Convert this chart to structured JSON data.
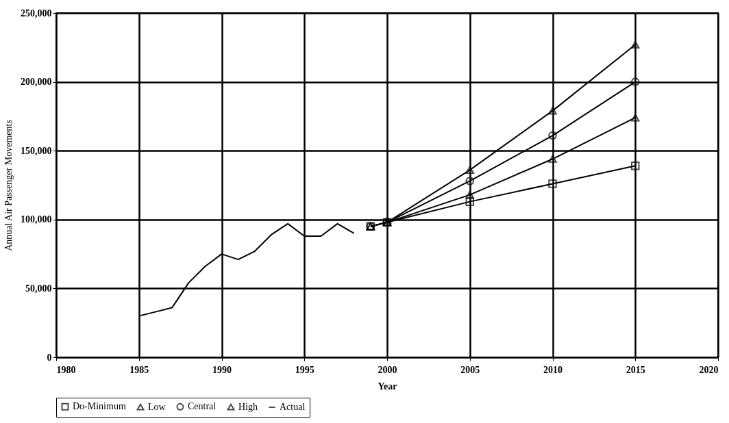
{
  "chart_data": {
    "type": "line",
    "xlabel": "Year",
    "ylabel": "Annual Air Passenger Movements",
    "xlim": [
      1980,
      2020
    ],
    "xticks": [
      1980,
      1985,
      1990,
      1995,
      2000,
      2005,
      2010,
      2015,
      2020
    ],
    "ylim": [
      0,
      250000
    ],
    "yticks": [
      0,
      {
        "value": 50000,
        "label": "50,000"
      },
      {
        "value": 100000,
        "label": "100,000"
      },
      {
        "value": 150000,
        "label": "150,000"
      },
      {
        "value": 200000,
        "label": "200,000"
      },
      {
        "value": 250000,
        "label": "250,000"
      }
    ],
    "grid": true,
    "legend": "bottom",
    "series": [
      {
        "name": "Do-Minimum",
        "color": "#000000",
        "marker": "square",
        "x": [
          1999,
          2000,
          2005,
          2010,
          2015
        ],
        "values": [
          95000,
          98000,
          113000,
          126000,
          139000
        ]
      },
      {
        "name": "Low",
        "color": "#000000",
        "marker": "triangle",
        "x": [
          1999,
          2000,
          2005,
          2010,
          2015
        ],
        "values": [
          95000,
          98000,
          118000,
          144000,
          174000
        ]
      },
      {
        "name": "Central",
        "color": "#000000",
        "marker": "circle",
        "x": [
          1999,
          2000,
          2005,
          2010,
          2015
        ],
        "values": [
          95000,
          98000,
          128000,
          161000,
          200000
        ]
      },
      {
        "name": "High",
        "color": "#000000",
        "marker": "triangle",
        "x": [
          1999,
          2000,
          2005,
          2010,
          2015
        ],
        "values": [
          95000,
          98000,
          136000,
          179000,
          227000
        ]
      },
      {
        "name": "Actual",
        "color": "#000000",
        "marker": "none",
        "x": [
          1985,
          1986,
          1987,
          1988,
          1989,
          1990,
          1991,
          1992,
          1993,
          1994,
          1995,
          1996,
          1997,
          1998
        ],
        "values": [
          30000,
          33000,
          36000,
          54000,
          66000,
          75000,
          71000,
          77000,
          89000,
          97000,
          88000,
          88000,
          97000,
          90000
        ]
      }
    ]
  }
}
